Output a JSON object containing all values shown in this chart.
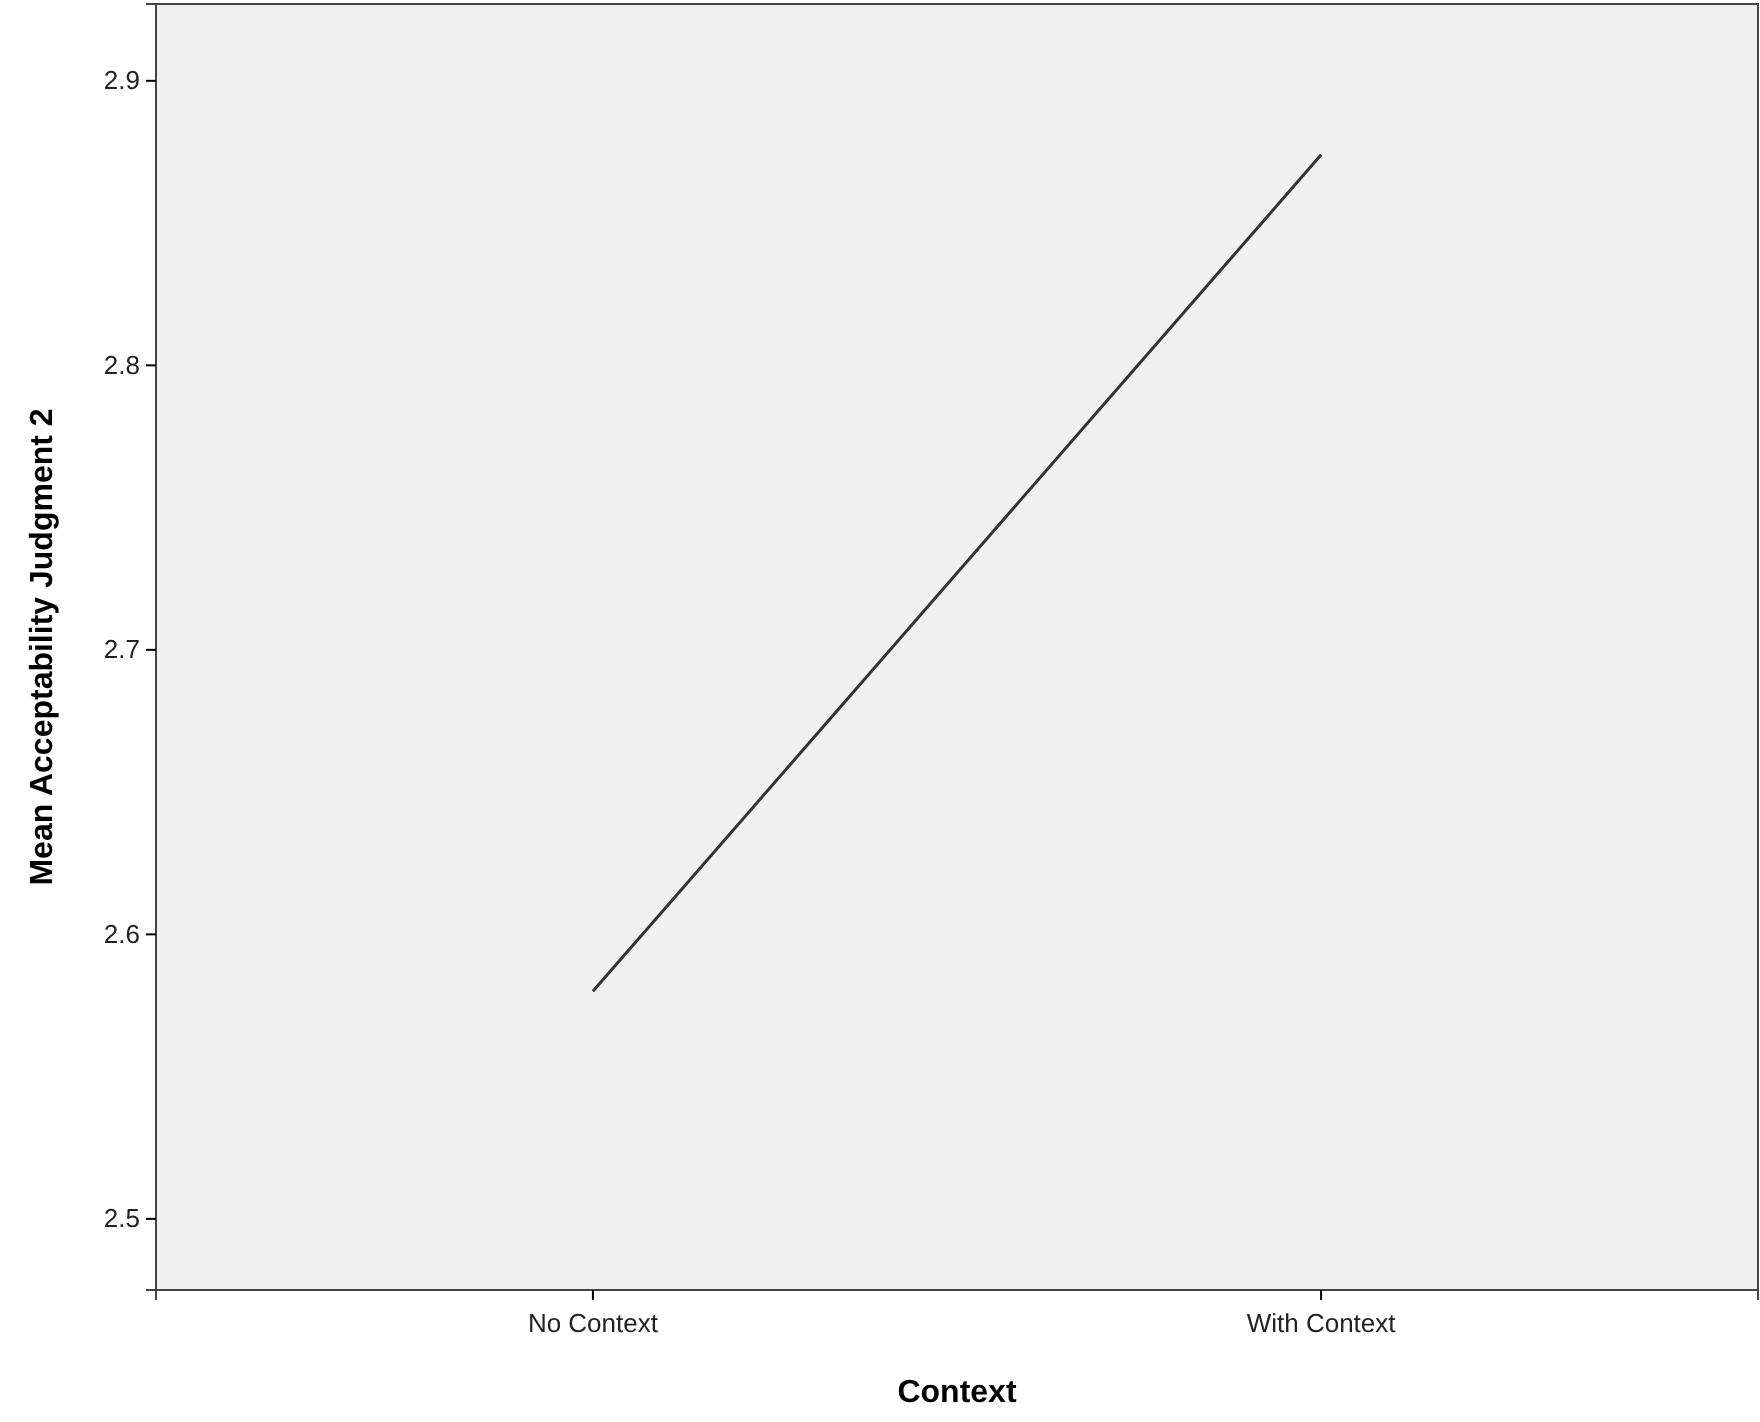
{
  "chart_data": {
    "type": "line",
    "xlabel": "Context",
    "ylabel": "Mean Acceptability Judgment 2",
    "categories": [
      "No Context",
      "With Context"
    ],
    "series": [
      {
        "color": "#333333",
        "values": [
          2.58,
          2.874
        ]
      }
    ],
    "ylim": [
      2.475,
      2.927
    ],
    "yticks": [
      2.5,
      2.6,
      2.7,
      2.8,
      2.9
    ],
    "grid": false,
    "marker": "none",
    "line_style": "solid"
  }
}
